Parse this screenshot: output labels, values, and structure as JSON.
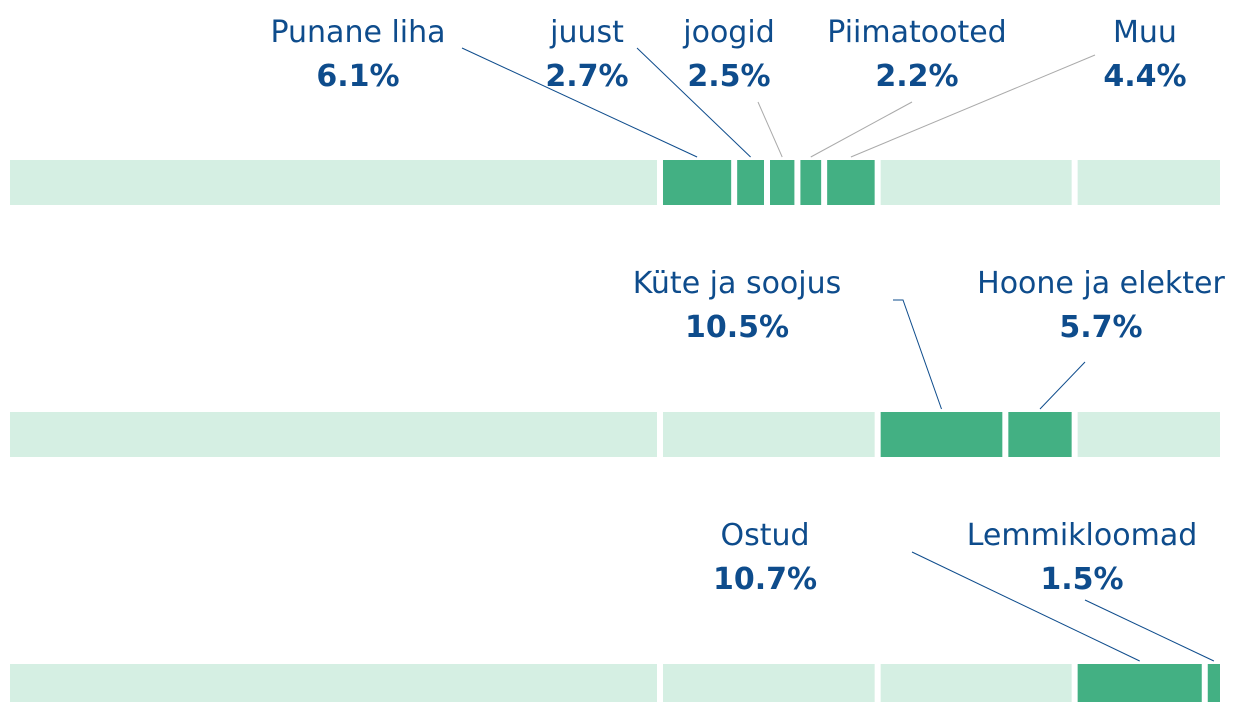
{
  "chart_data": {
    "type": "segmented_bar",
    "xlim": [
      0,
      100
    ],
    "other": 53.7,
    "rows": [
      {
        "items": [
          {
            "label": "Punane liha",
            "value": 6.1,
            "value_label": "6.1%"
          },
          {
            "label": "juust",
            "value": 2.7,
            "value_label": "2.7%"
          },
          {
            "label": "joogid",
            "value": 2.5,
            "value_label": "2.5%"
          },
          {
            "label": "Piimatooted",
            "value": 2.2,
            "value_label": "2.2%"
          },
          {
            "label": "Muu",
            "value": 4.4,
            "value_label": "4.4%"
          }
        ]
      },
      {
        "items": [
          {
            "label": "Küte ja soojus",
            "value": 10.5,
            "value_label": "10.5%"
          },
          {
            "label": "Hoone ja elekter",
            "value": 5.7,
            "value_label": "5.7%"
          }
        ]
      },
      {
        "items": [
          {
            "label": "Ostud",
            "value": 10.7,
            "value_label": "10.7%"
          },
          {
            "label": "Lemmikloomad",
            "value": 1.5,
            "value_label": "1.5%"
          }
        ]
      }
    ],
    "highlight_color": "#43b083",
    "base_color": "#d5efe3"
  }
}
